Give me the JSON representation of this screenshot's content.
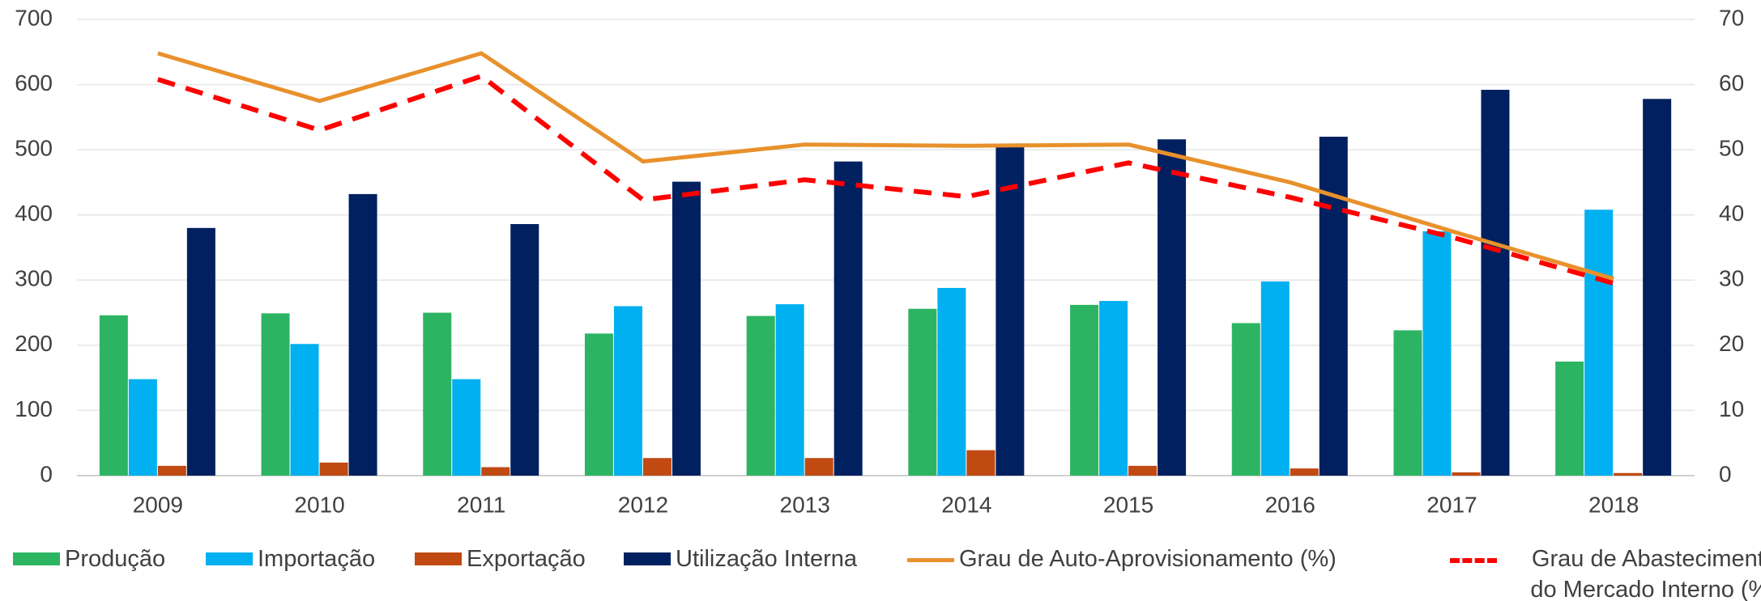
{
  "chart_data": {
    "type": "bar",
    "categories": [
      "2009",
      "2010",
      "2011",
      "2012",
      "2013",
      "2014",
      "2015",
      "2016",
      "2017",
      "2018"
    ],
    "series": [
      {
        "name": "Produção",
        "type": "bar",
        "color": "#2db463",
        "values": [
          246,
          249,
          250,
          218,
          245,
          256,
          262,
          234,
          223,
          175
        ]
      },
      {
        "name": "Importação",
        "type": "bar",
        "color": "#00b0f0",
        "values": [
          148,
          202,
          148,
          260,
          263,
          288,
          268,
          298,
          375,
          408
        ]
      },
      {
        "name": "Exportação",
        "type": "bar",
        "color": "#c04a12",
        "values": [
          15,
          20,
          13,
          27,
          27,
          39,
          15,
          11,
          5,
          4
        ]
      },
      {
        "name": "Utilização Interna",
        "type": "bar",
        "color": "#002060",
        "values": [
          380,
          432,
          386,
          451,
          482,
          505,
          516,
          520,
          592,
          578
        ]
      },
      {
        "name": "Grau de Auto-Aprovisionamento (%)",
        "type": "line",
        "axis": "y2",
        "color": "#e8912c",
        "values": [
          64.8,
          57.5,
          64.8,
          48.2,
          50.8,
          50.6,
          50.8,
          45,
          37.5,
          30.2
        ]
      },
      {
        "name": "Grau de Abastecimento do Mercado Interno (%)",
        "type": "line",
        "axis": "y2",
        "dashed": true,
        "color": "#ff0000",
        "values": [
          60.8,
          53,
          61.3,
          42.3,
          45.4,
          42.8,
          48,
          42.7,
          36.6,
          29.5
        ]
      }
    ],
    "ylim": [
      0,
      700
    ],
    "yticks": [
      0,
      100,
      200,
      300,
      400,
      500,
      600,
      700
    ],
    "y2lim": [
      0,
      70
    ],
    "y2ticks": [
      0,
      10,
      20,
      30,
      40,
      50,
      60,
      70
    ],
    "grid": true,
    "legend": "bottom"
  }
}
